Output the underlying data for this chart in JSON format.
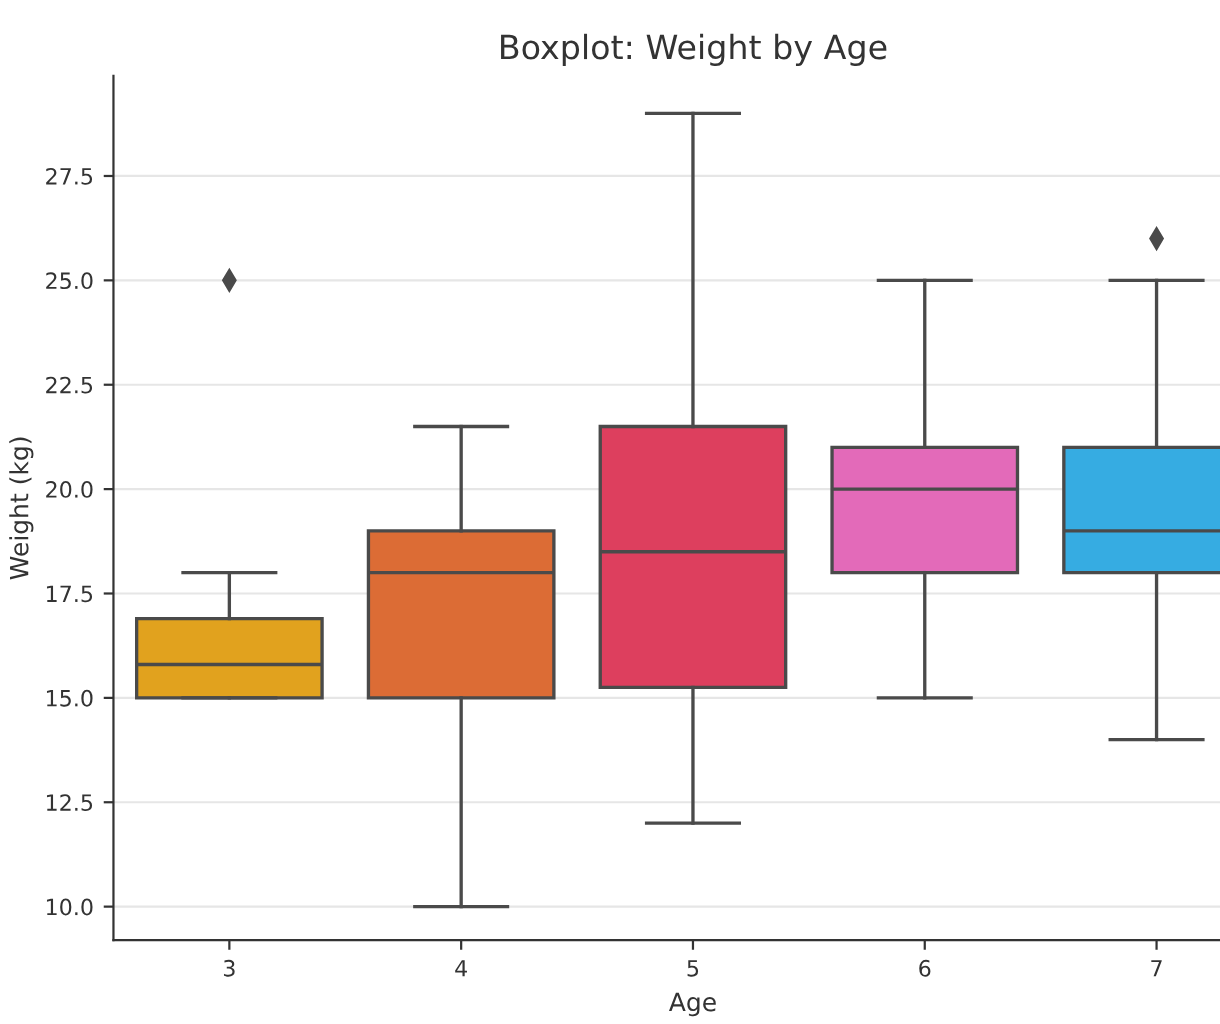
{
  "chart_data": {
    "type": "box",
    "title": "Boxplot: Weight by Age",
    "xlabel": "Age",
    "ylabel": "Weight (kg)",
    "categories": [
      "3",
      "4",
      "5",
      "6",
      "7"
    ],
    "colors": [
      "#e1a21e",
      "#dc6c35",
      "#dd3f5e",
      "#e36ab9",
      "#36ace2"
    ],
    "boxes": [
      {
        "low": 15,
        "q1": 15,
        "median": 15.8,
        "q3": 16.9,
        "high": 18,
        "outliers": [
          25
        ]
      },
      {
        "low": 10,
        "q1": 15,
        "median": 18,
        "q3": 19,
        "high": 21.5
      },
      {
        "low": 12,
        "q1": 15.25,
        "median": 18.5,
        "q3": 21.5,
        "high": 29
      },
      {
        "low": 15,
        "q1": 18,
        "median": 20,
        "q3": 21,
        "high": 25
      },
      {
        "low": 14,
        "q1": 18,
        "median": 19,
        "q3": 21,
        "high": 25,
        "outliers": [
          26
        ]
      }
    ],
    "ylim": [
      9.2,
      29.9
    ],
    "yticks": [
      {
        "value": 10,
        "label": "10.0"
      },
      {
        "value": 12.5,
        "label": "12.5"
      },
      {
        "value": 15,
        "label": "15.0"
      },
      {
        "value": 17.5,
        "label": "17.5"
      },
      {
        "value": 20,
        "label": "20.0"
      },
      {
        "value": 22.5,
        "label": "22.5"
      },
      {
        "value": 25,
        "label": "25.0"
      },
      {
        "value": 27.5,
        "label": "27.5"
      }
    ],
    "grid": "y",
    "marker": "diamond"
  }
}
